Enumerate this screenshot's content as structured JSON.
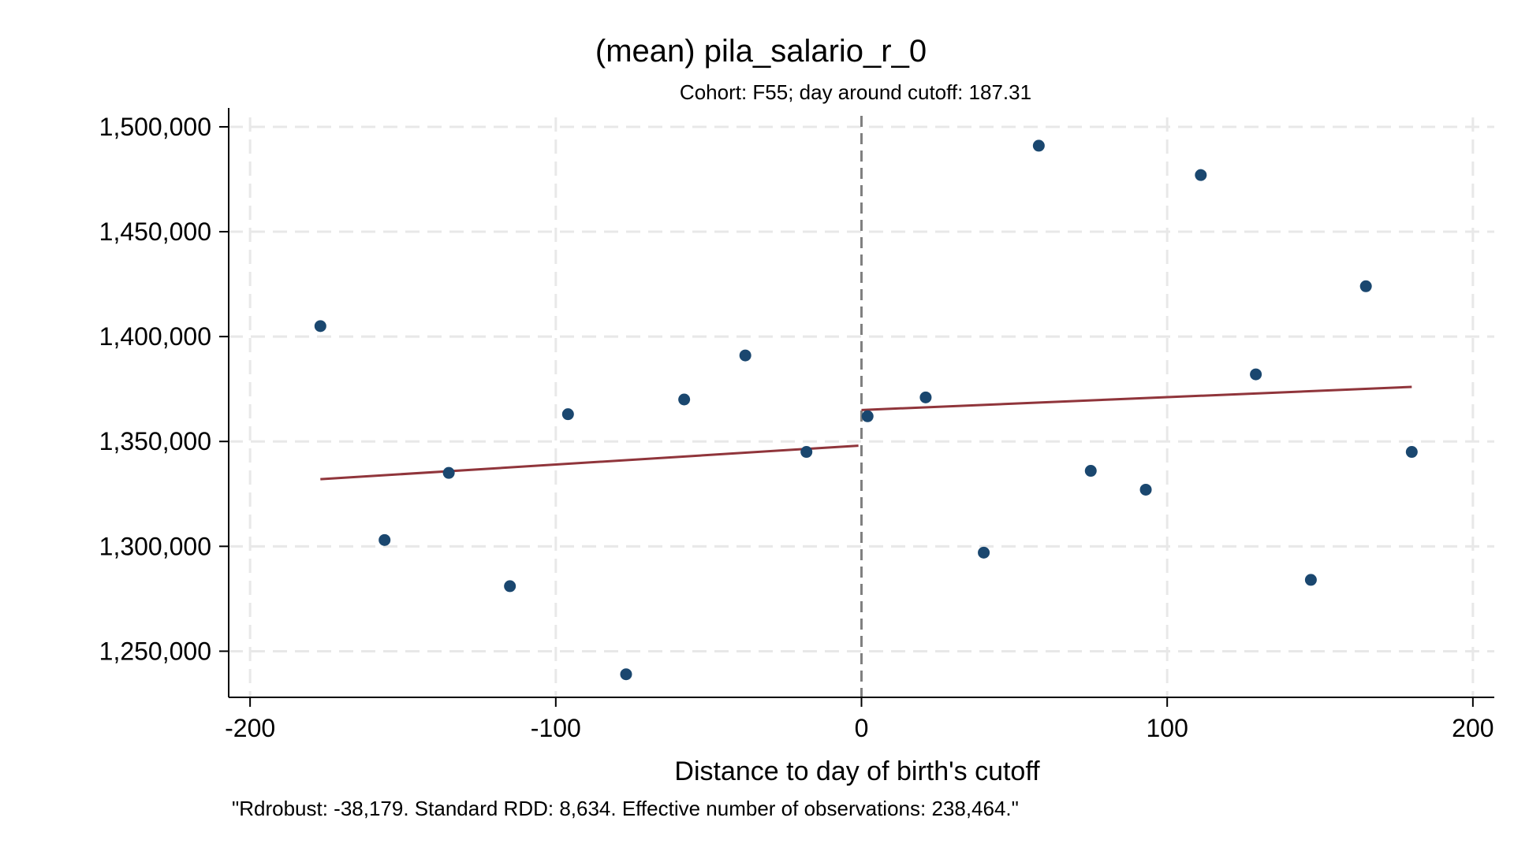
{
  "chart_data": {
    "type": "scatter",
    "title": "(mean) pila_salario_r_0",
    "subtitle": "Cohort: F55; day around cutoff:  187.31",
    "xlabel": "Distance to day of birth's cutoff",
    "ylabel": "",
    "note": "\"Rdrobust: -38,179. Standard RDD: 8,634. Effective number of observations: 238,464.\"",
    "xlim": [
      -207,
      207
    ],
    "ylim": [
      1228000,
      1509000
    ],
    "xticks": [
      -200,
      -100,
      0,
      100,
      200
    ],
    "xtick_labels": [
      "-200",
      "-100",
      "0",
      "100",
      "200"
    ],
    "yticks": [
      1250000,
      1300000,
      1350000,
      1400000,
      1450000,
      1500000
    ],
    "ytick_labels": [
      "1,250,000",
      "1,300,000",
      "1,350,000",
      "1,400,000",
      "1,450,000",
      "1,500,000"
    ],
    "grid": true,
    "cutoff_x": 0,
    "colors": {
      "points": "#1a476f",
      "fit": "#90353b",
      "grid": "#e8e8e8",
      "cutoff": "#808080"
    },
    "series": [
      {
        "type": "scatter",
        "x": [
          -177,
          -156,
          -135,
          -115,
          -96,
          -77,
          -58,
          -38,
          -18,
          2,
          21,
          40,
          58,
          75,
          93,
          111,
          129,
          147,
          165,
          180
        ],
        "y": [
          1405000,
          1303000,
          1335000,
          1281000,
          1363000,
          1239000,
          1370000,
          1391000,
          1345000,
          1362000,
          1371000,
          1297000,
          1491000,
          1336000,
          1327000,
          1477000,
          1382000,
          1284000,
          1424000,
          1345000
        ]
      },
      {
        "type": "line",
        "x": [
          -177,
          -1
        ],
        "y": [
          1332000,
          1348000
        ]
      },
      {
        "type": "line",
        "x": [
          0,
          180
        ],
        "y": [
          1365000,
          1376000
        ]
      }
    ]
  }
}
